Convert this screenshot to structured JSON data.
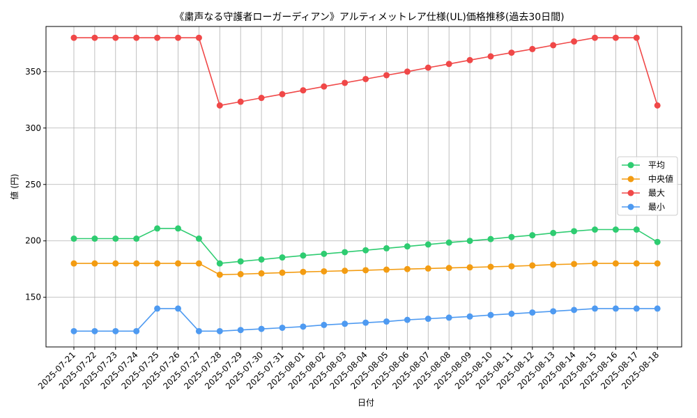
{
  "chart_data": {
    "type": "line",
    "title": "《粛声なる守護者ローガーディアン》アルティメットレア仕様(UL)価格推移(過去30日間)",
    "xlabel": "日付",
    "ylabel": "値 (円)",
    "categories": [
      "2025-07-21",
      "2025-07-22",
      "2025-07-23",
      "2025-07-24",
      "2025-07-25",
      "2025-07-26",
      "2025-07-27",
      "2025-07-28",
      "2025-07-29",
      "2025-07-30",
      "2025-07-31",
      "2025-08-01",
      "2025-08-02",
      "2025-08-03",
      "2025-08-04",
      "2025-08-05",
      "2025-08-06",
      "2025-08-07",
      "2025-08-08",
      "2025-08-09",
      "2025-08-10",
      "2025-08-11",
      "2025-08-12",
      "2025-08-13",
      "2025-08-14",
      "2025-08-15",
      "2025-08-16",
      "2025-08-17",
      "2025-08-18"
    ],
    "ylim": [
      106,
      390
    ],
    "yticks": [
      150,
      200,
      250,
      300,
      350
    ],
    "grid": true,
    "legend_position": "center-right",
    "series": [
      {
        "name": "平均",
        "color": "#2ecc71",
        "values": [
          202,
          202,
          202,
          202,
          211,
          211,
          202,
          180,
          181.8,
          183.5,
          185.3,
          187,
          188.5,
          190,
          191.7,
          193.4,
          195.1,
          196.8,
          198.5,
          200,
          201.6,
          203.4,
          205,
          207,
          208.6,
          210,
          210,
          210,
          199
        ]
      },
      {
        "name": "中央値",
        "color": "#f39c12",
        "values": [
          180,
          180,
          180,
          180,
          180,
          180,
          180,
          170,
          170.5,
          171.2,
          171.8,
          172.5,
          173,
          173.5,
          174,
          174.5,
          175,
          175.5,
          176,
          176.5,
          177,
          177.5,
          178.2,
          179,
          179.5,
          180,
          180,
          180,
          180
        ]
      },
      {
        "name": "最大",
        "color": "#f04848",
        "values": [
          380,
          380,
          380,
          380,
          380,
          380,
          380,
          320,
          323.3,
          326.7,
          330,
          333.4,
          336.8,
          340,
          343.4,
          346.8,
          350,
          353.5,
          356.8,
          360.2,
          363.5,
          366.8,
          370,
          373.4,
          376.7,
          380,
          380,
          380,
          320
        ]
      },
      {
        "name": "最小",
        "color": "#4e9af1",
        "values": [
          120,
          120,
          120,
          120,
          140,
          140,
          120,
          120,
          121,
          122,
          123,
          124,
          125.5,
          126.5,
          127.5,
          128.5,
          130,
          131,
          132,
          133,
          134.3,
          135.4,
          136.5,
          137.6,
          138.8,
          140,
          140,
          140,
          140
        ]
      }
    ]
  }
}
